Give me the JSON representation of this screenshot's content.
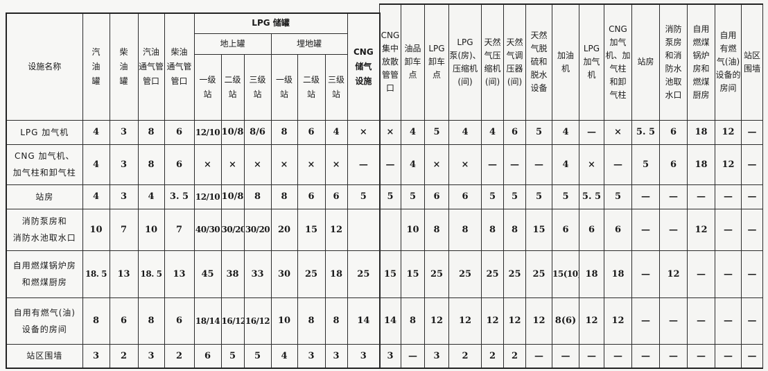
{
  "left_table": {
    "headers": {
      "facility_name": "设施名称",
      "gasoline_tank": "汽\n油\n罐",
      "diesel_tank": "柴\n油\n罐",
      "gasoline_vent": "汽油\n通气管\n管口",
      "diesel_vent": "柴油\n通气管\n管口",
      "lpg_storage": "LPG 储罐",
      "above_ground": "地上罐",
      "buried": "埋地罐",
      "grades": [
        "一级\n站",
        "二级\n站",
        "三级\n站",
        "一级\n站",
        "二级\n站",
        "三级\n站"
      ],
      "cng_storage": "CNG\n储气\n设施"
    }
  },
  "right_table": {
    "headers": [
      "CNG\n集中\n放散\n管管\n口",
      "油品\n卸车\n点",
      "LPG\n卸车\n点",
      "LPG\n泵(房)、\n压缩机\n(间)",
      "天然\n气压\n缩机\n(间)",
      "天然\n气调\n压器\n(间)",
      "天然\n气脱\n硫和\n脱水\n设备",
      "加油\n机",
      "LPG\n加气\n机",
      "CNG\n加气\n机、加\n气柱\n和卸\n气柱",
      "站房",
      "消防\n泵房\n和消\n防水\n池取\n水口",
      "自用\n燃煤\n锅炉\n房和\n燃煤\n厨房",
      "自用\n有燃\n气(油)\n设备的\n房间",
      "站区\n围墙"
    ]
  },
  "rows": [
    {
      "label": "LPG 加气机",
      "left": [
        "4",
        "3",
        "8",
        "6",
        "12/10",
        "10/8",
        "8/6",
        "8",
        "6",
        "4",
        "×"
      ],
      "right": [
        "×",
        "4",
        "5",
        "4",
        "4",
        "6",
        "5",
        "4",
        "—",
        "×",
        "5. 5",
        "6",
        "18",
        "12",
        "—"
      ]
    },
    {
      "label": "CNG 加气机、\n加气柱和卸气柱",
      "left": [
        "4",
        "3",
        "8",
        "6",
        "×",
        "×",
        "×",
        "×",
        "×",
        "×",
        "—"
      ],
      "right": [
        "—",
        "4",
        "×",
        "×",
        "—",
        "—",
        "—",
        "4",
        "×",
        "—",
        "5",
        "6",
        "18",
        "12",
        "—"
      ]
    },
    {
      "label": "站房",
      "left": [
        "4",
        "3",
        "4",
        "3. 5",
        "12/10",
        "10/8",
        "8",
        "8",
        "6",
        "6",
        "5"
      ],
      "right": [
        "5",
        "5",
        "6",
        "6",
        "5",
        "5",
        "5",
        "5",
        "5. 5",
        "5",
        "—",
        "—",
        "—",
        "—",
        "—"
      ]
    },
    {
      "label": "消防泵房和\n消防水池取水口",
      "left": [
        "10",
        "7",
        "10",
        "7",
        "40/30",
        "30/20",
        "30/20",
        "20",
        "15",
        "12",
        ""
      ],
      "right": [
        "",
        "10",
        "8",
        "8",
        "8",
        "8",
        "15",
        "6",
        "6",
        "6",
        "—",
        "—",
        "12",
        "—",
        "—"
      ]
    },
    {
      "label": "自用燃煤锅炉房\n和燃煤厨房",
      "left": [
        "18. 5",
        "13",
        "18. 5",
        "13",
        "45",
        "38",
        "33",
        "30",
        "25",
        "18",
        "25"
      ],
      "right": [
        "15",
        "15",
        "25",
        "25",
        "25",
        "25",
        "25",
        "15(10)",
        "18",
        "18",
        "—",
        "12",
        "—",
        "—",
        "—"
      ]
    },
    {
      "label": "自用有燃气(油)\n设备的房间",
      "left": [
        "8",
        "6",
        "8",
        "6",
        "18/14",
        "16/12",
        "16/12",
        "10",
        "8",
        "8",
        "14"
      ],
      "right": [
        "14",
        "8",
        "12",
        "12",
        "12",
        "12",
        "12",
        "8(6)",
        "12",
        "12",
        "—",
        "—",
        "—",
        "—",
        "—"
      ]
    },
    {
      "label": "站区围墙",
      "left": [
        "3",
        "2",
        "3",
        "2",
        "6",
        "5",
        "5",
        "4",
        "3",
        "3",
        "3"
      ],
      "right": [
        "3",
        "—",
        "3",
        "2",
        "2",
        "2",
        "—",
        "—",
        "—",
        "—",
        "—",
        "—",
        "—",
        "—",
        "—"
      ]
    }
  ]
}
